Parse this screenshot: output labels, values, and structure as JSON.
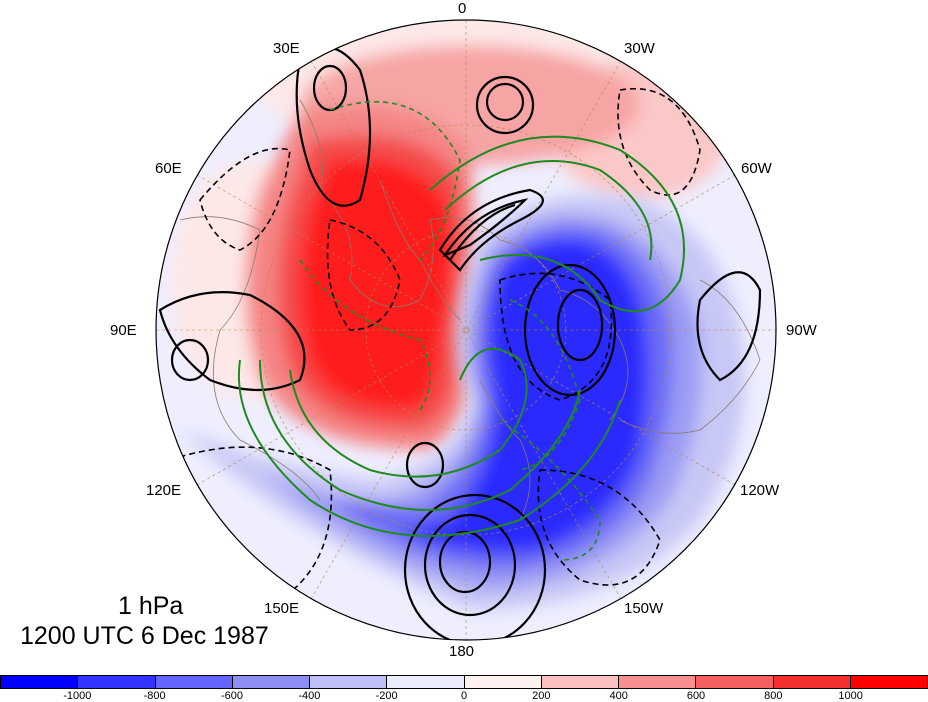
{
  "map": {
    "projection": "polar stereographic (north pole)",
    "longitude_labels": [
      {
        "id": "lon-0",
        "text": "0"
      },
      {
        "id": "lon-30w",
        "text": "30W"
      },
      {
        "id": "lon-60w",
        "text": "60W"
      },
      {
        "id": "lon-90w",
        "text": "90W"
      },
      {
        "id": "lon-120w",
        "text": "120W"
      },
      {
        "id": "lon-150w",
        "text": "150W"
      },
      {
        "id": "lon-180",
        "text": "180"
      },
      {
        "id": "lon-150e",
        "text": "150E"
      },
      {
        "id": "lon-120e",
        "text": "120E"
      },
      {
        "id": "lon-90e",
        "text": "90E"
      },
      {
        "id": "lon-60e",
        "text": "60E"
      },
      {
        "id": "lon-30e",
        "text": "30E"
      }
    ],
    "contour_colors": {
      "positive": "#000000",
      "negative_dashed": "#000000",
      "secondary": "#1f8a1f"
    }
  },
  "title": {
    "level": "1 hPa",
    "time": "1200 UTC 6 Dec 1987"
  },
  "colorbar": {
    "colors": [
      "#0000ff",
      "#3333ff",
      "#6666ff",
      "#8e8ef5",
      "#bfbff8",
      "#ececff",
      "#fff0f0",
      "#fac0c0",
      "#f88e8e",
      "#f46060",
      "#f23030",
      "#ff0000"
    ],
    "tick_labels": [
      "-1000",
      "-800",
      "-600",
      "-400",
      "-200",
      "0",
      "200",
      "400",
      "600",
      "800",
      "1000"
    ]
  }
}
